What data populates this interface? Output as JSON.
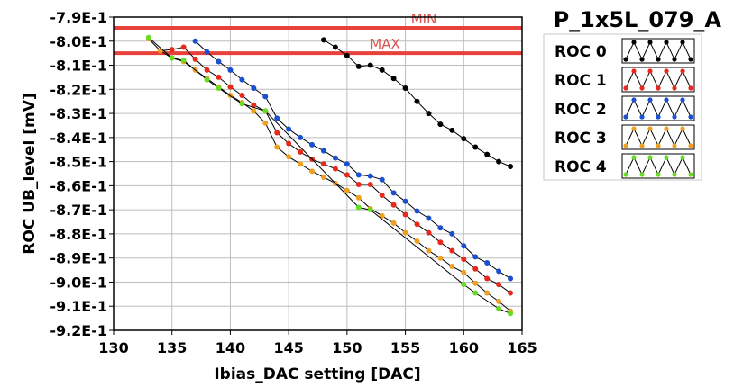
{
  "chart_data": {
    "type": "line",
    "title": "P_1x5L_079_A",
    "xlabel": "Ibias_DAC setting [DAC]",
    "ylabel": "ROC UB_level [mV]",
    "xlim": [
      130,
      165
    ],
    "ylim": [
      -0.92,
      -0.79
    ],
    "x_ticks": [
      130,
      135,
      140,
      145,
      150,
      155,
      160,
      165
    ],
    "y_ticks": [
      -0.79,
      -0.8,
      -0.81,
      -0.82,
      -0.83,
      -0.84,
      -0.85,
      -0.86,
      -0.87,
      -0.88,
      -0.89,
      -0.9,
      -0.91,
      -0.92
    ],
    "y_tick_labels": [
      "-7.9E-1",
      "-8.0E-1",
      "-8.1E-1",
      "-8.2E-1",
      "-8.3E-1",
      "-8.4E-1",
      "-8.5E-1",
      "-8.6E-1",
      "-8.7E-1",
      "-8.8E-1",
      "-8.9E-1",
      "-9.0E-1",
      "-9.1E-1",
      "-9.2E-1"
    ],
    "grid": true,
    "legend_position": "right",
    "limits": [
      {
        "label": "MIN",
        "y": -0.7945,
        "color": "#e8403a"
      },
      {
        "label": "MAX",
        "y": -0.805,
        "color": "#e8403a"
      }
    ],
    "series": [
      {
        "name": "ROC 0",
        "color": "#000000",
        "x": [
          148,
          149,
          150,
          151,
          152,
          153,
          154,
          155,
          156,
          157,
          158,
          159,
          160,
          161,
          162,
          163,
          164
        ],
        "y": [
          -0.7995,
          -0.8025,
          -0.806,
          -0.8105,
          -0.81,
          -0.812,
          -0.8155,
          -0.8195,
          -0.825,
          -0.83,
          -0.8345,
          -0.837,
          -0.8405,
          -0.844,
          -0.847,
          -0.85,
          -0.852
        ]
      },
      {
        "name": "ROC 1",
        "color": "#e8281a",
        "x": [
          134,
          135,
          136,
          137,
          138,
          139,
          140,
          141,
          142,
          143,
          144,
          145,
          146,
          147,
          148,
          149,
          150,
          151,
          152,
          153,
          154,
          155,
          156,
          157,
          158,
          159,
          160,
          161,
          162,
          163,
          164
        ],
        "y": [
          -0.804,
          -0.8035,
          -0.8025,
          -0.8075,
          -0.812,
          -0.815,
          -0.819,
          -0.8225,
          -0.8265,
          -0.829,
          -0.838,
          -0.8425,
          -0.846,
          -0.849,
          -0.851,
          -0.853,
          -0.8555,
          -0.8595,
          -0.8595,
          -0.864,
          -0.868,
          -0.872,
          -0.876,
          -0.8795,
          -0.8835,
          -0.887,
          -0.8905,
          -0.8945,
          -0.8985,
          -0.901,
          -0.9045
        ]
      },
      {
        "name": "ROC 2",
        "color": "#1a4fcf",
        "x": [
          137,
          138,
          139,
          140,
          141,
          142,
          143,
          144,
          145,
          146,
          147,
          148,
          149,
          150,
          151,
          152,
          153,
          154,
          155,
          156,
          157,
          158,
          159,
          160,
          161,
          162,
          163,
          164
        ],
        "y": [
          -0.8,
          -0.8045,
          -0.8085,
          -0.812,
          -0.816,
          -0.8195,
          -0.823,
          -0.832,
          -0.8365,
          -0.84,
          -0.843,
          -0.8455,
          -0.8485,
          -0.851,
          -0.8555,
          -0.856,
          -0.8575,
          -0.863,
          -0.8665,
          -0.8705,
          -0.8735,
          -0.8775,
          -0.88,
          -0.885,
          -0.8895,
          -0.892,
          -0.8955,
          -0.8985
        ]
      },
      {
        "name": "ROC 3",
        "color": "#f0a020",
        "x": [
          133,
          134,
          135,
          136,
          137,
          138,
          139,
          140,
          141,
          142,
          143,
          144,
          145,
          146,
          147,
          148,
          149,
          150,
          151,
          152,
          153,
          154,
          155,
          156,
          157,
          158,
          159,
          160,
          161,
          162,
          163,
          164
        ],
        "y": [
          -0.799,
          -0.804,
          -0.807,
          -0.8085,
          -0.812,
          -0.8155,
          -0.819,
          -0.8225,
          -0.8255,
          -0.829,
          -0.834,
          -0.844,
          -0.848,
          -0.851,
          -0.854,
          -0.8565,
          -0.859,
          -0.862,
          -0.865,
          -0.8695,
          -0.8725,
          -0.8755,
          -0.8795,
          -0.883,
          -0.887,
          -0.89,
          -0.8935,
          -0.896,
          -0.9005,
          -0.9045,
          -0.908,
          -0.912
        ]
      },
      {
        "name": "ROC 4",
        "color": "#66dd22",
        "x": [
          133,
          135,
          136,
          138,
          139,
          141,
          143,
          151,
          152,
          160,
          161,
          163,
          164
        ],
        "y": [
          -0.7985,
          -0.807,
          -0.808,
          -0.816,
          -0.8195,
          -0.826,
          -0.829,
          -0.869,
          -0.87,
          -0.901,
          -0.9045,
          -0.911,
          -0.913
        ]
      }
    ]
  }
}
